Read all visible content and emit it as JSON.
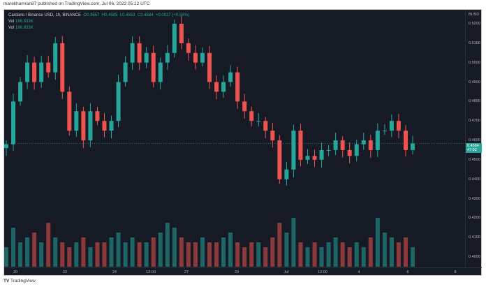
{
  "published": "marekhamran87 published on TradingView.com, Jul 06, 2022 05:12 UTC",
  "legend": {
    "symbol": "Cardano / Binance USD, 1h, BINANCE",
    "o": "O0.4557",
    "h": "H0.4585",
    "l": "L0.4553",
    "c": "C0.4584",
    "chg": "+0.0027 (+0.59%)",
    "vol1_label": "Vol",
    "vol1": "196.833K",
    "vol2_label": "Vol",
    "vol2": "196.833K"
  },
  "currency": "BUSD",
  "current": {
    "price": "0.4584",
    "countdown": "47:02"
  },
  "colors": {
    "up": "#26a69a",
    "down": "#ef5350",
    "bg": "#161a25"
  },
  "footer": "TradingView",
  "chart_data": {
    "type": "candlestick",
    "y_ticks": [
      "0.5200",
      "0.5100",
      "0.5000",
      "0.4900",
      "0.4800",
      "0.4700",
      "0.4600",
      "0.4500",
      "0.4400",
      "0.4300",
      "0.4200",
      "0.4100",
      "0.4000"
    ],
    "ylim": [
      0.396,
      0.527
    ],
    "x_ticks": [
      "20",
      "22",
      "24",
      "12:00",
      "27",
      "29",
      "Jul",
      "12:00",
      "4",
      "6",
      "8"
    ],
    "close": [
      0.458,
      0.48,
      0.49,
      0.5,
      0.49,
      0.5,
      0.495,
      0.51,
      0.485,
      0.465,
      0.475,
      0.46,
      0.475,
      0.47,
      0.465,
      0.47,
      0.49,
      0.5,
      0.51,
      0.5,
      0.505,
      0.49,
      0.5,
      0.505,
      0.52,
      0.51,
      0.505,
      0.5,
      0.505,
      0.49,
      0.485,
      0.49,
      0.495,
      0.48,
      0.475,
      0.47,
      0.47,
      0.465,
      0.46,
      0.44,
      0.445,
      0.465,
      0.45,
      0.452,
      0.45,
      0.455,
      0.455,
      0.46,
      0.455,
      0.452,
      0.458,
      0.46,
      0.455,
      0.465,
      0.465,
      0.47,
      0.465,
      0.455,
      0.4584
    ],
    "volume_relative": [
      0.4,
      0.8,
      0.5,
      0.6,
      0.7,
      0.5,
      0.9,
      0.6,
      0.5,
      0.4,
      0.5,
      0.6,
      0.4,
      0.5,
      0.5,
      0.6,
      0.7,
      0.5,
      0.6,
      0.5,
      0.5,
      0.6,
      0.7,
      0.9,
      0.8,
      0.6,
      0.5,
      0.5,
      0.6,
      0.5,
      0.5,
      0.6,
      0.7,
      0.5,
      0.4,
      0.5,
      0.5,
      0.4,
      0.6,
      0.9,
      0.7,
      1.0,
      0.5,
      0.4,
      0.5,
      0.4,
      0.5,
      0.6,
      0.5,
      0.4,
      0.5,
      0.4,
      0.6,
      1.0,
      0.7,
      0.6,
      0.5,
      0.6,
      0.4
    ]
  }
}
